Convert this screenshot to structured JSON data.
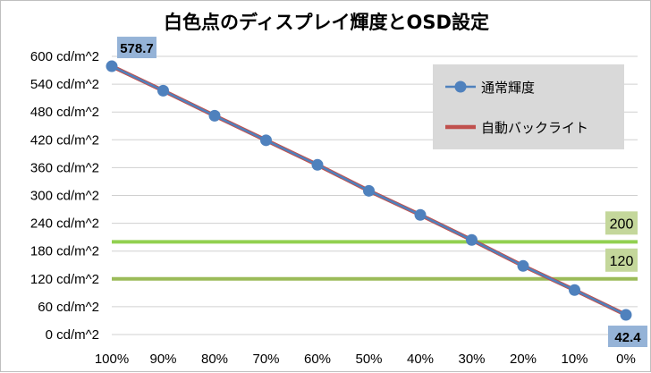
{
  "chart_data": {
    "type": "line",
    "title": "白色点のディスプレイ輝度とOSD設定",
    "xlabel": "",
    "ylabel": "",
    "categories": [
      "100%",
      "90%",
      "80%",
      "70%",
      "60%",
      "50%",
      "40%",
      "30%",
      "20%",
      "10%",
      "0%"
    ],
    "ylim": [
      0,
      600
    ],
    "ytick_values": [
      0,
      60,
      120,
      180,
      240,
      300,
      360,
      420,
      480,
      540,
      600
    ],
    "yticks": [
      "0 cd/m^2",
      "60 cd/m^2",
      "120 cd/m^2",
      "180 cd/m^2",
      "240 cd/m^2",
      "300 cd/m^2",
      "360 cd/m^2",
      "420 cd/m^2",
      "480 cd/m^2",
      "540 cd/m^2",
      "600 cd/m^2"
    ],
    "grid": true,
    "legend_position": "top-right",
    "series": [
      {
        "name": "通常輝度",
        "color": "#4f81bd",
        "marker": "circle",
        "values": [
          578.7,
          526,
          472,
          419,
          366,
          310,
          258,
          204,
          148,
          96,
          42.4
        ]
      },
      {
        "name": "自動バックライト",
        "color": "#c0504d",
        "marker": "none",
        "values": [
          578.7,
          526,
          472,
          419,
          366,
          310,
          258,
          204,
          148,
          96,
          42.4
        ]
      }
    ],
    "reference_lines": [
      {
        "value": 200,
        "label": "200",
        "color": "#92d050",
        "label_bg": "#c4d79b"
      },
      {
        "value": 120,
        "label": "120",
        "color": "#9bbb59",
        "label_bg": "#c4d79b"
      }
    ],
    "annotations": [
      {
        "category": "100%",
        "value": 578.7,
        "text": "578.7",
        "bg": "#95b3d7",
        "placement": "above-right"
      },
      {
        "category": "0%",
        "value": 42.4,
        "text": "42.4",
        "bg": "#95b3d7",
        "placement": "below"
      }
    ],
    "legend_bg": "#d9d9d9"
  }
}
